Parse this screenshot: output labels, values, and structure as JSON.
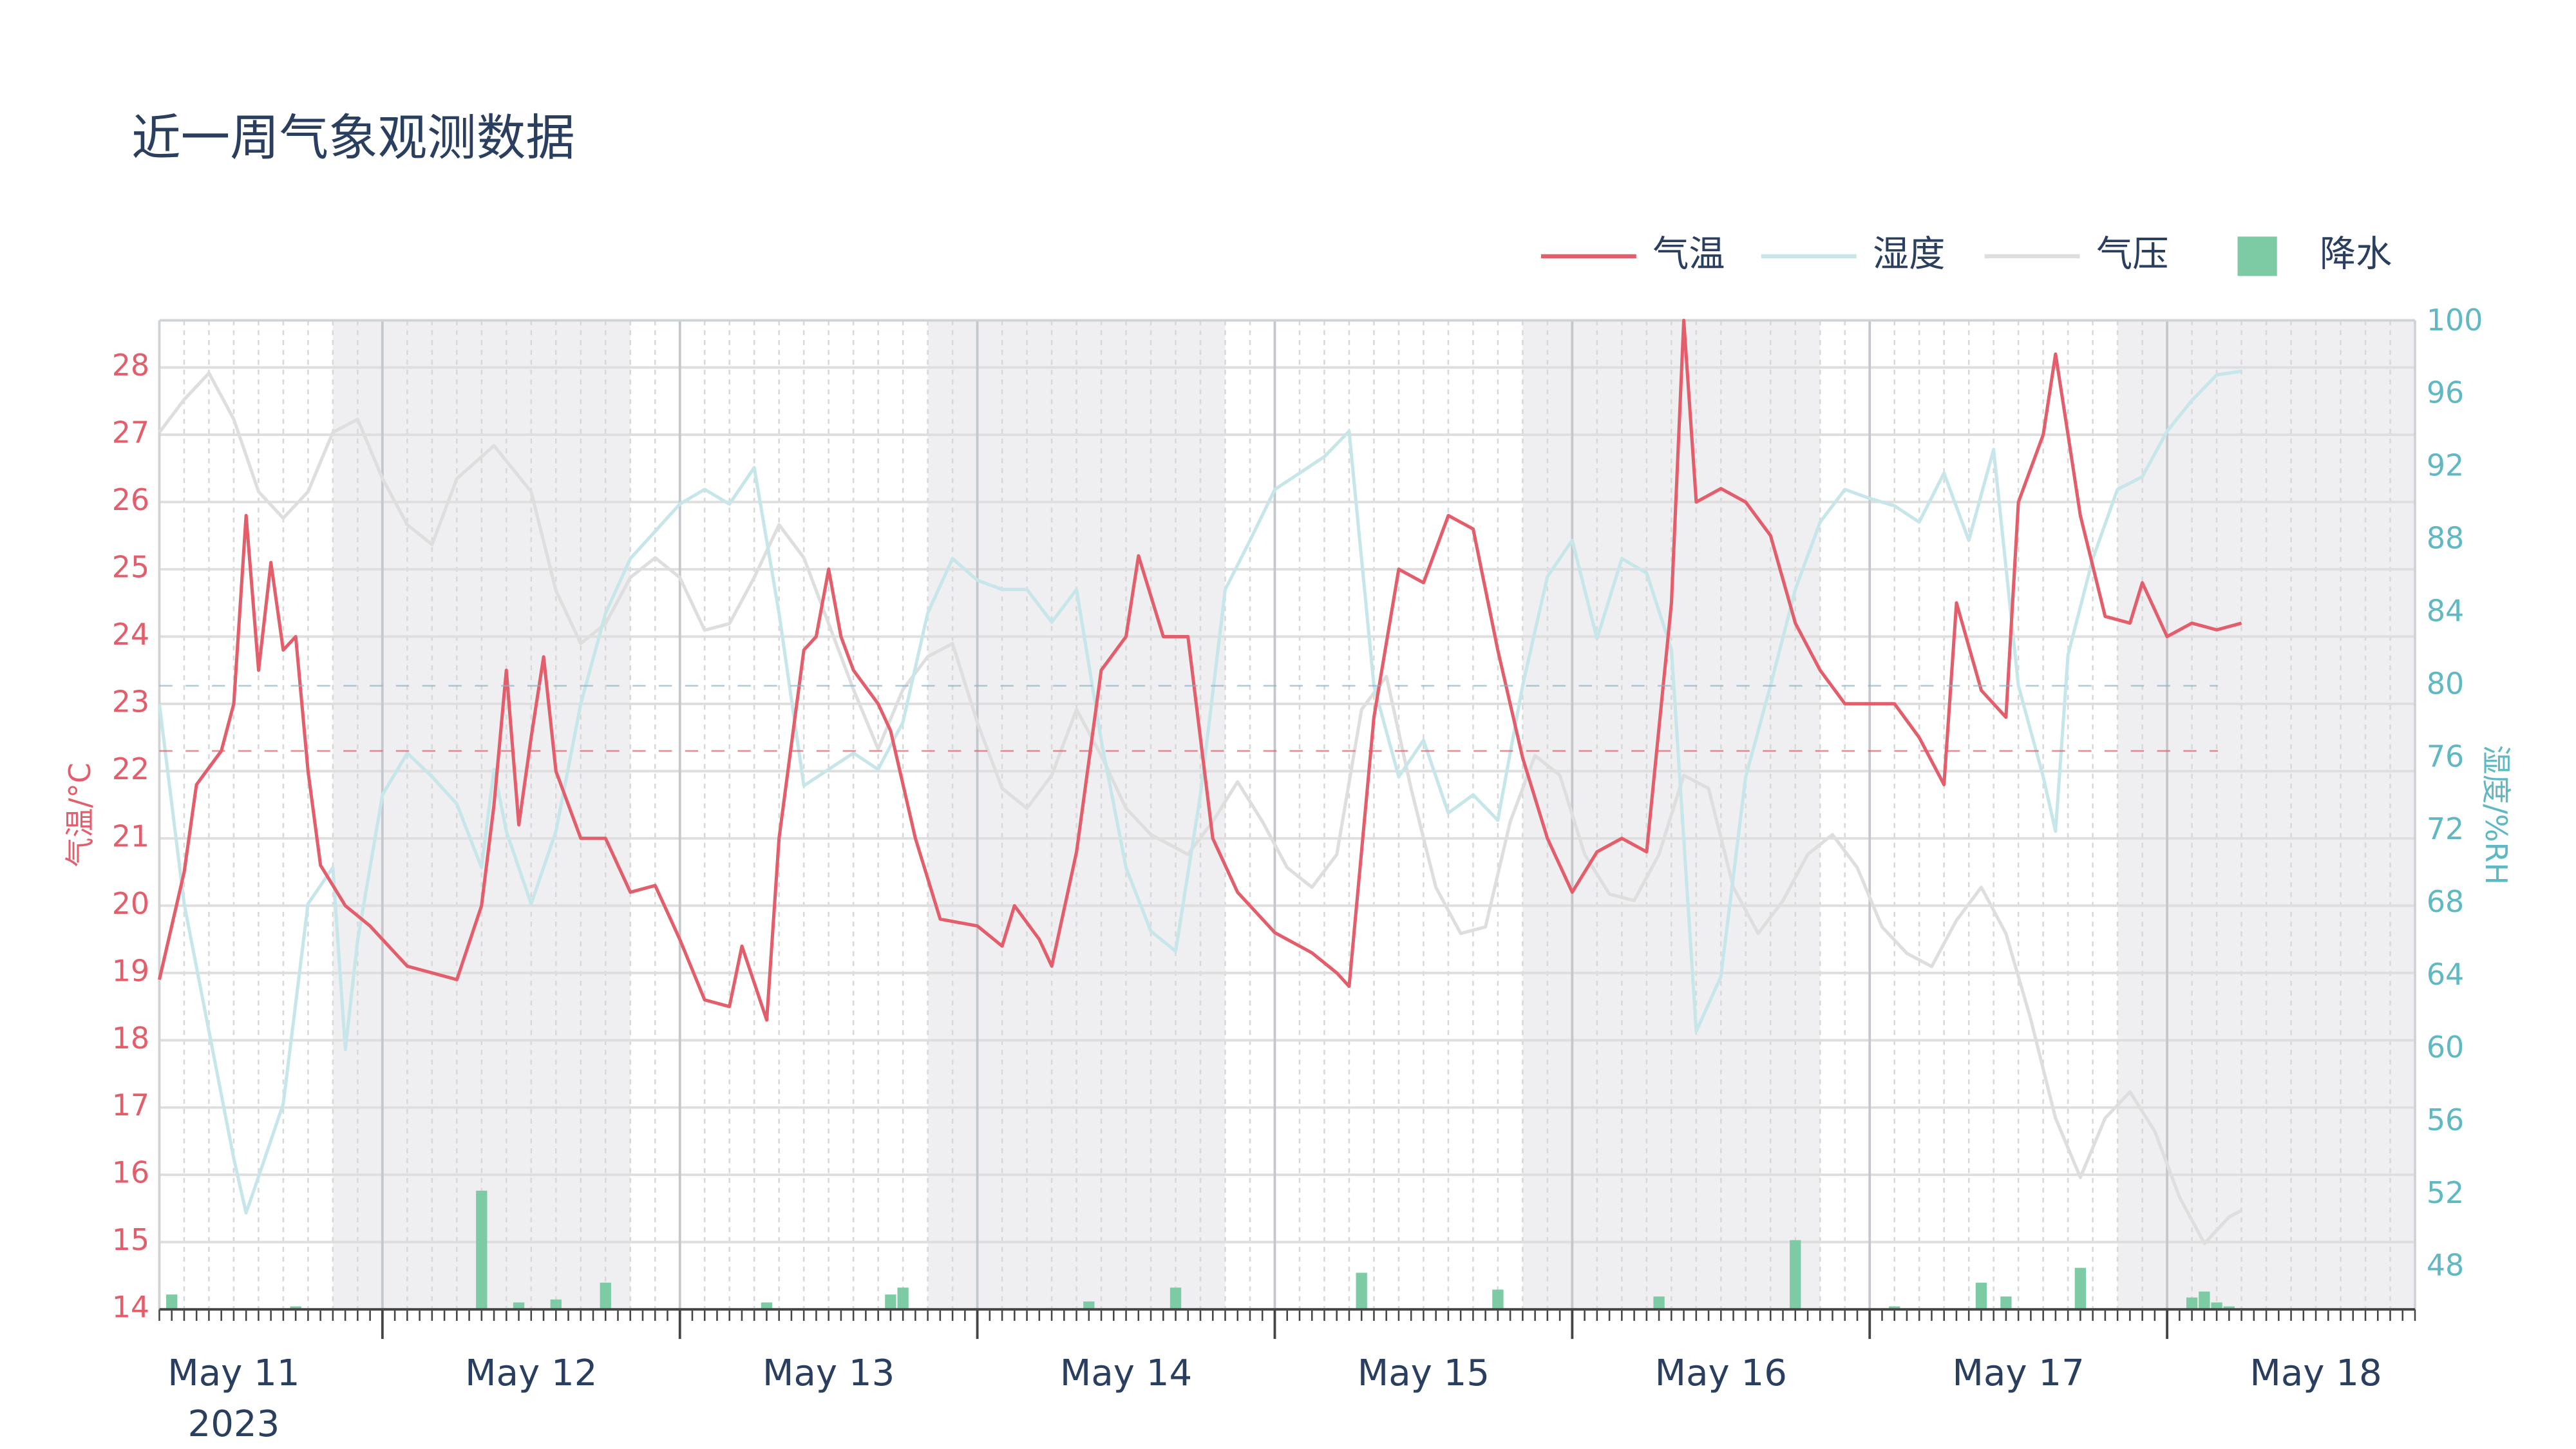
{
  "chart_data": {
    "type": "line",
    "title": "近一周气象观测数据",
    "y_label": "气温/°C",
    "y2_label": "湿度/%RH",
    "x_year_label": "2023",
    "xlim": [
      "2023-05-11 06:00",
      "2023-05-18 20:00"
    ],
    "xticks": [
      {
        "value": "2023-05-11 12:00",
        "label": "May 11"
      },
      {
        "value": "2023-05-12 12:00",
        "label": "May 12"
      },
      {
        "value": "2023-05-13 12:00",
        "label": "May 13"
      },
      {
        "value": "2023-05-14 12:00",
        "label": "May 14"
      },
      {
        "value": "2023-05-15 12:00",
        "label": "May 15"
      },
      {
        "value": "2023-05-16 12:00",
        "label": "May 16"
      },
      {
        "value": "2023-05-17 12:00",
        "label": "May 17"
      },
      {
        "value": "2023-05-18 12:00",
        "label": "May 18"
      }
    ],
    "xgrid": [
      "2023-05-12 00:00",
      "2023-05-13 00:00",
      "2023-05-14 00:00",
      "2023-05-15 00:00",
      "2023-05-16 00:00",
      "2023-05-17 00:00",
      "2023-05-18 00:00"
    ],
    "minor_grid_hours": 2,
    "minor_tick_hours": 1,
    "shaded_bands": [
      [
        "2023-05-11 20:00",
        "2023-05-12 20:00"
      ],
      [
        "2023-05-13 20:00",
        "2023-05-14 20:00"
      ],
      [
        "2023-05-15 20:00",
        "2023-05-16 20:00"
      ],
      [
        "2023-05-17 20:00",
        "2023-05-18 20:00"
      ]
    ],
    "ylim": [
      14,
      28.7
    ],
    "yticks": [
      14,
      15,
      16,
      17,
      18,
      19,
      20,
      21,
      22,
      23,
      24,
      25,
      26,
      27,
      28
    ],
    "y2lim": [
      45.7,
      100.1
    ],
    "y2ticks": [
      48,
      52,
      56,
      60,
      64,
      68,
      72,
      76,
      80,
      84,
      88,
      92,
      96,
      100
    ],
    "y3lim": [
      1000,
      1015
    ],
    "y4lim": [
      0,
      10
    ],
    "grid": true,
    "legend": "top-right",
    "reference_lines": [
      {
        "axis": "y",
        "value": 22.3,
        "color": "#e35d6a"
      },
      {
        "axis": "y2",
        "value": 80,
        "color": "#8fb3c9"
      }
    ],
    "series": [
      {
        "name": "气温",
        "type": "line",
        "axis": "y",
        "color": "#e35d6a",
        "x": [
          "2023-05-11 06:00",
          "2023-05-11 08:00",
          "2023-05-11 09:00",
          "2023-05-11 11:00",
          "2023-05-11 12:00",
          "2023-05-11 13:00",
          "2023-05-11 14:00",
          "2023-05-11 15:00",
          "2023-05-11 16:00",
          "2023-05-11 17:00",
          "2023-05-11 18:00",
          "2023-05-11 19:00",
          "2023-05-11 21:00",
          "2023-05-11 23:00",
          "2023-05-12 02:00",
          "2023-05-12 04:00",
          "2023-05-12 06:00",
          "2023-05-12 08:00",
          "2023-05-12 09:00",
          "2023-05-12 10:00",
          "2023-05-12 11:00",
          "2023-05-12 12:00",
          "2023-05-12 13:00",
          "2023-05-12 14:00",
          "2023-05-12 16:00",
          "2023-05-12 18:00",
          "2023-05-12 20:00",
          "2023-05-12 22:00",
          "2023-05-13 00:00",
          "2023-05-13 02:00",
          "2023-05-13 04:00",
          "2023-05-13 05:00",
          "2023-05-13 07:00",
          "2023-05-13 08:00",
          "2023-05-13 10:00",
          "2023-05-13 11:00",
          "2023-05-13 12:00",
          "2023-05-13 13:00",
          "2023-05-13 14:00",
          "2023-05-13 16:00",
          "2023-05-13 17:00",
          "2023-05-13 19:00",
          "2023-05-13 21:00",
          "2023-05-14 00:00",
          "2023-05-14 02:00",
          "2023-05-14 03:00",
          "2023-05-14 05:00",
          "2023-05-14 06:00",
          "2023-05-14 08:00",
          "2023-05-14 10:00",
          "2023-05-14 12:00",
          "2023-05-14 13:00",
          "2023-05-14 15:00",
          "2023-05-14 17:00",
          "2023-05-14 19:00",
          "2023-05-14 21:00",
          "2023-05-15 00:00",
          "2023-05-15 03:00",
          "2023-05-15 05:00",
          "2023-05-15 06:00",
          "2023-05-15 08:00",
          "2023-05-15 10:00",
          "2023-05-15 12:00",
          "2023-05-15 14:00",
          "2023-05-15 16:00",
          "2023-05-15 18:00",
          "2023-05-15 20:00",
          "2023-05-15 22:00",
          "2023-05-16 00:00",
          "2023-05-16 02:00",
          "2023-05-16 04:00",
          "2023-05-16 06:00",
          "2023-05-16 08:00",
          "2023-05-16 09:00",
          "2023-05-16 10:00",
          "2023-05-16 12:00",
          "2023-05-16 14:00",
          "2023-05-16 16:00",
          "2023-05-16 18:00",
          "2023-05-16 20:00",
          "2023-05-16 22:00",
          "2023-05-17 00:00",
          "2023-05-17 02:00",
          "2023-05-17 04:00",
          "2023-05-17 06:00",
          "2023-05-17 07:00",
          "2023-05-17 09:00",
          "2023-05-17 11:00",
          "2023-05-17 12:00",
          "2023-05-17 14:00",
          "2023-05-17 15:00",
          "2023-05-17 16:00",
          "2023-05-17 17:00",
          "2023-05-17 19:00",
          "2023-05-17 21:00",
          "2023-05-17 22:00",
          "2023-05-18 00:00",
          "2023-05-18 02:00",
          "2023-05-18 04:00",
          "2023-05-18 06:00"
        ],
        "values": [
          18.9,
          20.5,
          21.8,
          22.3,
          23.0,
          25.8,
          23.5,
          25.1,
          23.8,
          24.0,
          22.0,
          20.6,
          20.0,
          19.7,
          19.1,
          19.0,
          18.9,
          20.0,
          21.5,
          23.5,
          21.2,
          22.5,
          23.7,
          22.0,
          21.0,
          21.0,
          20.2,
          20.3,
          19.5,
          18.6,
          18.5,
          19.4,
          18.3,
          21.0,
          23.8,
          24.0,
          25.0,
          24.0,
          23.5,
          23.0,
          22.6,
          21.0,
          19.8,
          19.7,
          19.4,
          20.0,
          19.5,
          19.1,
          20.8,
          23.5,
          24.0,
          25.2,
          24.0,
          24.0,
          21.0,
          20.2,
          19.6,
          19.3,
          19.0,
          18.8,
          22.8,
          25.0,
          24.8,
          25.8,
          25.6,
          23.8,
          22.2,
          21.0,
          20.2,
          20.8,
          21.0,
          20.8,
          24.5,
          28.7,
          26.0,
          26.2,
          26.0,
          25.5,
          24.2,
          23.5,
          23.0,
          23.0,
          23.0,
          22.5,
          21.8,
          24.5,
          23.2,
          22.8,
          26.0,
          27.0,
          28.2,
          27.0,
          25.8,
          24.3,
          24.2,
          24.8,
          24.0,
          24.2,
          24.1,
          24.2
        ]
      },
      {
        "name": "湿度",
        "type": "line",
        "axis": "y2",
        "color": "#c6e6e9",
        "x": [
          "2023-05-11 06:00",
          "2023-05-11 08:00",
          "2023-05-11 10:00",
          "2023-05-11 12:00",
          "2023-05-11 13:00",
          "2023-05-11 14:00",
          "2023-05-11 16:00",
          "2023-05-11 18:00",
          "2023-05-11 20:00",
          "2023-05-11 21:00",
          "2023-05-11 22:00",
          "2023-05-12 00:00",
          "2023-05-12 02:00",
          "2023-05-12 04:00",
          "2023-05-12 06:00",
          "2023-05-12 08:00",
          "2023-05-12 09:00",
          "2023-05-12 10:00",
          "2023-05-12 12:00",
          "2023-05-12 14:00",
          "2023-05-12 16:00",
          "2023-05-12 18:00",
          "2023-05-12 20:00",
          "2023-05-12 22:00",
          "2023-05-13 00:00",
          "2023-05-13 02:00",
          "2023-05-13 04:00",
          "2023-05-13 06:00",
          "2023-05-13 08:00",
          "2023-05-13 10:00",
          "2023-05-13 12:00",
          "2023-05-13 14:00",
          "2023-05-13 16:00",
          "2023-05-13 18:00",
          "2023-05-13 20:00",
          "2023-05-13 22:00",
          "2023-05-14 00:00",
          "2023-05-14 02:00",
          "2023-05-14 04:00",
          "2023-05-14 06:00",
          "2023-05-14 08:00",
          "2023-05-14 10:00",
          "2023-05-14 12:00",
          "2023-05-14 14:00",
          "2023-05-14 16:00",
          "2023-05-14 18:00",
          "2023-05-14 20:00",
          "2023-05-14 22:00",
          "2023-05-15 00:00",
          "2023-05-15 02:00",
          "2023-05-15 04:00",
          "2023-05-15 06:00",
          "2023-05-15 08:00",
          "2023-05-15 10:00",
          "2023-05-15 12:00",
          "2023-05-15 14:00",
          "2023-05-15 16:00",
          "2023-05-15 18:00",
          "2023-05-15 20:00",
          "2023-05-15 22:00",
          "2023-05-16 00:00",
          "2023-05-16 02:00",
          "2023-05-16 04:00",
          "2023-05-16 06:00",
          "2023-05-16 08:00",
          "2023-05-16 10:00",
          "2023-05-16 12:00",
          "2023-05-16 14:00",
          "2023-05-16 16:00",
          "2023-05-16 18:00",
          "2023-05-16 20:00",
          "2023-05-16 22:00",
          "2023-05-17 00:00",
          "2023-05-17 02:00",
          "2023-05-17 04:00",
          "2023-05-17 06:00",
          "2023-05-17 08:00",
          "2023-05-17 10:00",
          "2023-05-17 12:00",
          "2023-05-17 14:00",
          "2023-05-17 15:00",
          "2023-05-17 16:00",
          "2023-05-17 18:00",
          "2023-05-17 20:00",
          "2023-05-17 22:00",
          "2023-05-18 00:00",
          "2023-05-18 02:00",
          "2023-05-18 04:00",
          "2023-05-18 06:00"
        ],
        "values": [
          79.0,
          68,
          61,
          54,
          51,
          53,
          57,
          68,
          70,
          60,
          66,
          74,
          76.3,
          75,
          73.5,
          70,
          75.4,
          72,
          68,
          72,
          79,
          84,
          87,
          88.5,
          90,
          90.8,
          90,
          92,
          84,
          74.5,
          75.4,
          76.3,
          75.4,
          78,
          84,
          87,
          85.8,
          85.3,
          85.3,
          83.5,
          85.3,
          77,
          70,
          66.5,
          65.4,
          74,
          85.3,
          88,
          90.8,
          91.7,
          92.6,
          94,
          80,
          75,
          77,
          73,
          74,
          72.6,
          80,
          86,
          88,
          82.6,
          87,
          86.2,
          82,
          61,
          64,
          75,
          80,
          85.3,
          89,
          90.8,
          90.3,
          89.9,
          89,
          91.7,
          88,
          93,
          80,
          75,
          72,
          81.7,
          87,
          90.8,
          91.5,
          94,
          95.7,
          97.1,
          97.3
        ]
      },
      {
        "name": "气压",
        "type": "line",
        "axis": "y3",
        "color": "#dedede",
        "x": [
          "2023-05-11 06:00",
          "2023-05-11 08:00",
          "2023-05-11 10:00",
          "2023-05-11 12:00",
          "2023-05-11 14:00",
          "2023-05-11 16:00",
          "2023-05-11 18:00",
          "2023-05-11 20:00",
          "2023-05-11 22:00",
          "2023-05-12 00:00",
          "2023-05-12 02:00",
          "2023-05-12 04:00",
          "2023-05-12 06:00",
          "2023-05-12 09:00",
          "2023-05-12 12:00",
          "2023-05-12 14:00",
          "2023-05-12 16:00",
          "2023-05-12 18:00",
          "2023-05-12 20:00",
          "2023-05-12 22:00",
          "2023-05-13 00:00",
          "2023-05-13 02:00",
          "2023-05-13 04:00",
          "2023-05-13 06:00",
          "2023-05-13 08:00",
          "2023-05-13 10:00",
          "2023-05-13 12:00",
          "2023-05-13 14:00",
          "2023-05-13 16:00",
          "2023-05-13 18:00",
          "2023-05-13 20:00",
          "2023-05-13 22:00",
          "2023-05-14 00:00",
          "2023-05-14 02:00",
          "2023-05-14 04:00",
          "2023-05-14 06:00",
          "2023-05-14 08:00",
          "2023-05-14 10:00",
          "2023-05-14 12:00",
          "2023-05-14 14:00",
          "2023-05-14 17:00",
          "2023-05-14 19:00",
          "2023-05-14 21:00",
          "2023-05-14 23:00",
          "2023-05-15 01:00",
          "2023-05-15 03:00",
          "2023-05-15 05:00",
          "2023-05-15 07:00",
          "2023-05-15 09:00",
          "2023-05-15 11:00",
          "2023-05-15 13:00",
          "2023-05-15 15:00",
          "2023-05-15 17:00",
          "2023-05-15 19:00",
          "2023-05-15 21:00",
          "2023-05-15 23:00",
          "2023-05-16 01:00",
          "2023-05-16 03:00",
          "2023-05-16 05:00",
          "2023-05-16 07:00",
          "2023-05-16 09:00",
          "2023-05-16 11:00",
          "2023-05-16 13:00",
          "2023-05-16 15:00",
          "2023-05-16 17:00",
          "2023-05-16 19:00",
          "2023-05-16 21:00",
          "2023-05-16 23:00",
          "2023-05-17 01:00",
          "2023-05-17 03:00",
          "2023-05-17 05:00",
          "2023-05-17 07:00",
          "2023-05-17 09:00",
          "2023-05-17 11:00",
          "2023-05-17 13:00",
          "2023-05-17 15:00",
          "2023-05-17 17:00",
          "2023-05-17 19:00",
          "2023-05-17 21:00",
          "2023-05-17 23:00",
          "2023-05-18 01:00",
          "2023-05-18 03:00",
          "2023-05-18 05:00",
          "2023-05-18 06:00"
        ],
        "values": [
          1013.3,
          1013.8,
          1014.2,
          1013.5,
          1012.4,
          1012.0,
          1012.4,
          1013.3,
          1013.5,
          1012.6,
          1011.9,
          1011.6,
          1012.6,
          1013.1,
          1012.4,
          1010.9,
          1010.1,
          1010.4,
          1011.1,
          1011.4,
          1011.1,
          1010.3,
          1010.4,
          1011.1,
          1011.9,
          1011.4,
          1010.4,
          1009.4,
          1008.5,
          1009.4,
          1009.9,
          1010.1,
          1008.9,
          1007.9,
          1007.6,
          1008.1,
          1009.1,
          1008.4,
          1007.6,
          1007.2,
          1006.9,
          1007.4,
          1008.0,
          1007.4,
          1006.7,
          1006.4,
          1006.9,
          1009.1,
          1009.6,
          1007.9,
          1006.4,
          1005.7,
          1005.8,
          1007.4,
          1008.4,
          1008.1,
          1006.9,
          1006.3,
          1006.2,
          1006.9,
          1008.1,
          1007.9,
          1006.4,
          1005.7,
          1006.2,
          1006.9,
          1007.2,
          1006.7,
          1005.8,
          1005.4,
          1005.2,
          1005.9,
          1006.4,
          1005.7,
          1004.4,
          1002.9,
          1002.0,
          1002.9,
          1003.3,
          1002.7,
          1001.7,
          1001.0,
          1001.4,
          1001.5
        ]
      },
      {
        "name": "降水",
        "type": "bar",
        "axis": "y4",
        "color": "#7dcba4",
        "x": [
          "2023-05-11 07:00",
          "2023-05-11 17:00",
          "2023-05-12 08:00",
          "2023-05-12 11:00",
          "2023-05-12 14:00",
          "2023-05-12 18:00",
          "2023-05-13 07:00",
          "2023-05-13 17:00",
          "2023-05-13 18:00",
          "2023-05-14 09:00",
          "2023-05-14 16:00",
          "2023-05-15 07:00",
          "2023-05-15 18:00",
          "2023-05-16 07:00",
          "2023-05-16 18:00",
          "2023-05-17 02:00",
          "2023-05-17 09:00",
          "2023-05-17 11:00",
          "2023-05-17 17:00",
          "2023-05-18 02:00",
          "2023-05-18 03:00",
          "2023-05-18 04:00",
          "2023-05-18 05:00"
        ],
        "values": [
          0.15,
          0.03,
          1.2,
          0.07,
          0.1,
          0.27,
          0.07,
          0.15,
          0.22,
          0.08,
          0.22,
          0.37,
          0.2,
          0.13,
          0.7,
          0.03,
          0.27,
          0.13,
          0.42,
          0.12,
          0.18,
          0.07,
          0.03
        ]
      }
    ]
  }
}
